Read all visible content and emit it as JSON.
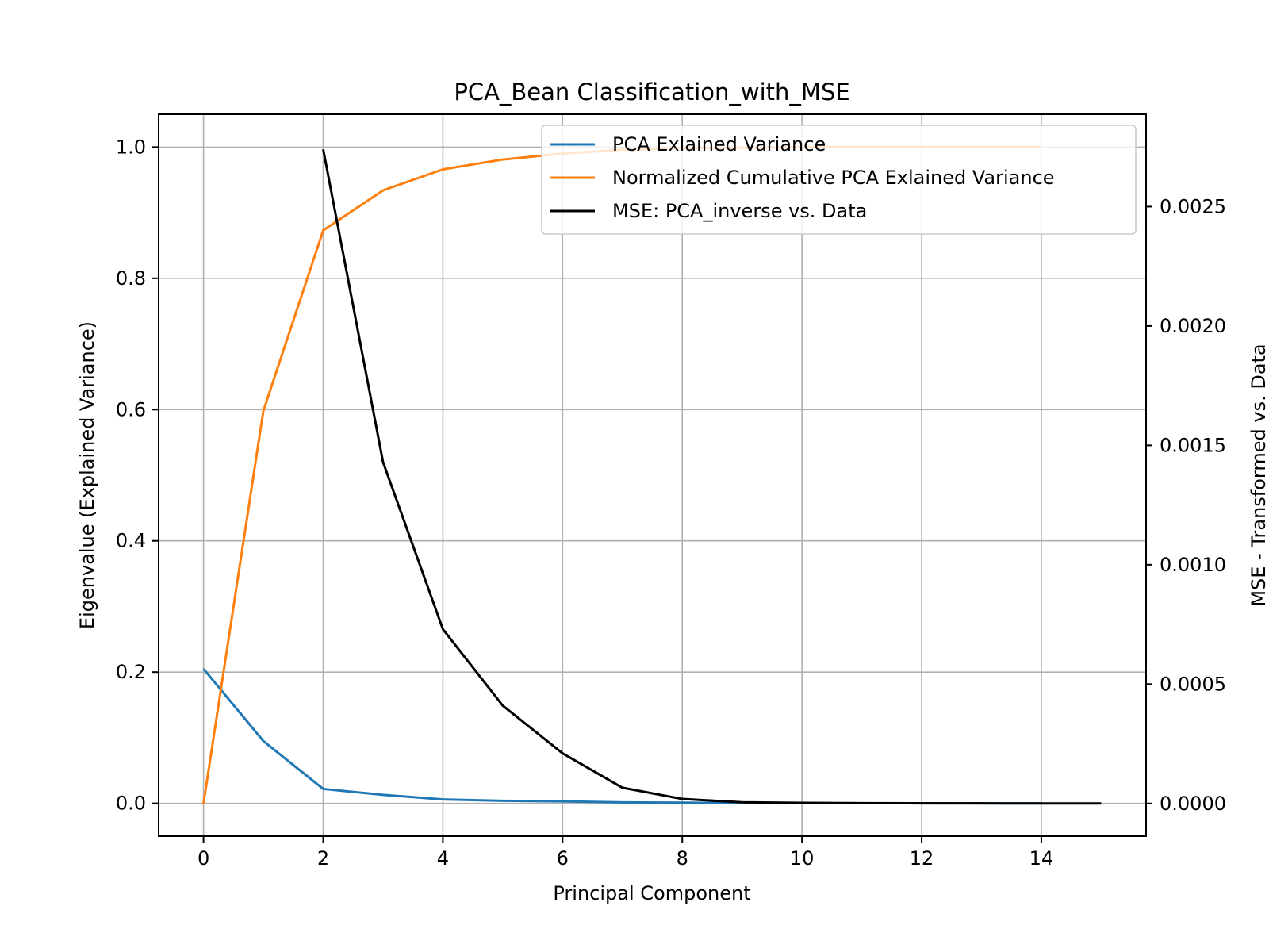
{
  "chart_data": {
    "type": "line",
    "title": "PCA_Bean Classification_with_MSE",
    "xlabel": "Principal Component",
    "ylabel": "Eigenvalue (Explained Variance)",
    "ylabel_right": "MSE - Transformed vs. Data",
    "xlim": [
      -0.75,
      15.75
    ],
    "ylim": [
      -0.05,
      1.05
    ],
    "ylim_right": [
      -0.000137,
      0.002887
    ],
    "x_ticks": [
      0,
      2,
      4,
      6,
      8,
      10,
      12,
      14
    ],
    "x_tick_labels": [
      "0",
      "2",
      "4",
      "6",
      "8",
      "10",
      "12",
      "14"
    ],
    "y_ticks": [
      0.0,
      0.2,
      0.4,
      0.6,
      0.8,
      1.0
    ],
    "y_tick_labels": [
      "0.0",
      "0.2",
      "0.4",
      "0.6",
      "0.8",
      "1.0"
    ],
    "y_right_ticks": [
      0.0,
      0.0005,
      0.001,
      0.0015,
      0.002,
      0.0025
    ],
    "y_right_tick_labels": [
      "0.0000",
      "0.0005",
      "0.0010",
      "0.0015",
      "0.0020",
      "0.0025"
    ],
    "grid": true,
    "legend_position": "top-right",
    "series": [
      {
        "name": "PCA Exlained Variance",
        "color": "#1f77b4",
        "axis": "left",
        "x": [
          0,
          1,
          2,
          3,
          4,
          5,
          6,
          7,
          8,
          9,
          10,
          11,
          12,
          13,
          14
        ],
        "values": [
          0.205,
          0.095,
          0.022,
          0.013,
          0.006,
          0.004,
          0.003,
          0.0015,
          0.001,
          0.0006,
          0.0003,
          0.0002,
          0.0001,
          5e-05,
          2e-05
        ]
      },
      {
        "name": "Normalized Cumulative PCA Exlained Variance",
        "color": "#ff7f0e",
        "axis": "left",
        "x": [
          0,
          1,
          2,
          3,
          4,
          5,
          6,
          7,
          8,
          9,
          10,
          11,
          12,
          13,
          14
        ],
        "values": [
          0.0,
          0.598,
          0.873,
          0.934,
          0.966,
          0.981,
          0.99,
          0.996,
          0.998,
          0.999,
          1.0,
          1.0,
          1.0,
          1.0,
          1.0
        ]
      },
      {
        "name": "MSE: PCA_inverse vs. Data",
        "color": "#000000",
        "axis": "right",
        "x": [
          2,
          3,
          4,
          5,
          6,
          7,
          8,
          9,
          10,
          11,
          12,
          13,
          14,
          15
        ],
        "values": [
          0.00274,
          0.00143,
          0.00073,
          0.00041,
          0.00021,
          6.6e-05,
          1.9e-05,
          5e-06,
          2.5e-06,
          1.2e-06,
          6e-07,
          3e-07,
          1e-07,
          0.0
        ]
      }
    ]
  }
}
